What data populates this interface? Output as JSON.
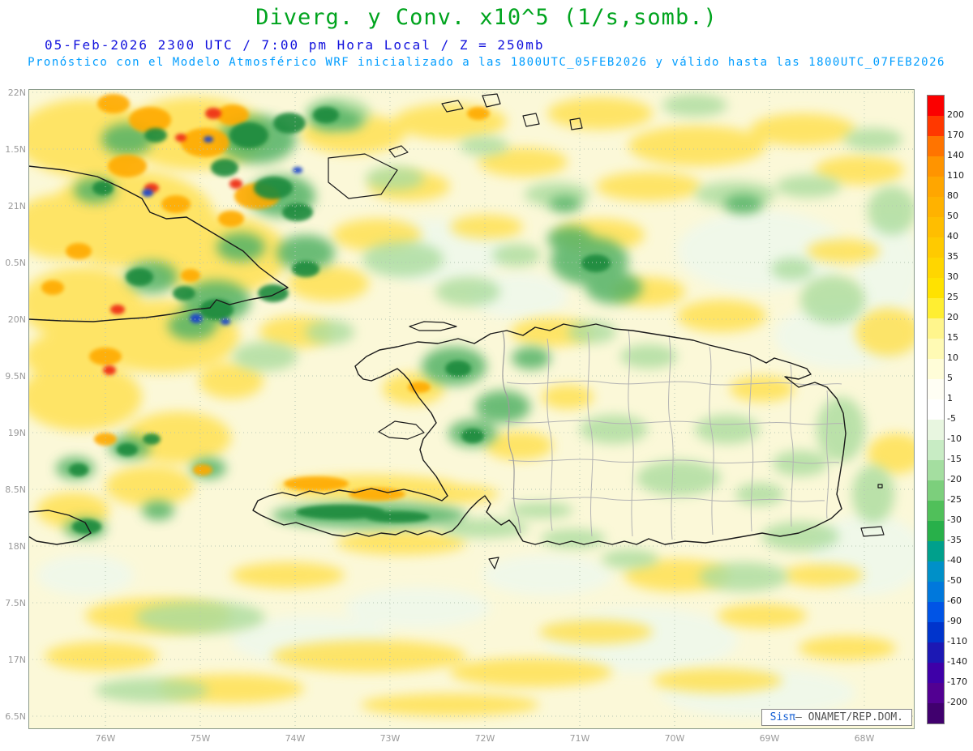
{
  "header": {
    "title": "Diverg. y Conv. x10^5 (1/s,somb.)",
    "date_line": "05-Feb-2026  2300 UTC / 7:00 pm Hora Local / Z = 250mb",
    "model_line": "Pronóstico con el Modelo Atmosférico WRF inicializado a las 1800UTC_05FEB2026 y válido hasta las  1800UTC_07FEB2026"
  },
  "axes": {
    "lat_labels": [
      "22N",
      "1.5N",
      "21N",
      "0.5N",
      "20N",
      "9.5N",
      "19N",
      "8.5N",
      "18N",
      "7.5N",
      "17N",
      "6.5N"
    ],
    "lon_labels": [
      "76W",
      "75W",
      "74W",
      "73W",
      "72W",
      "71W",
      "70W",
      "69W",
      "68W"
    ]
  },
  "chart_data": {
    "type": "heatmap",
    "title": "Diverg. y Conv. x10^5 (1/s,somb.)",
    "variable": "Divergencia y Convergencia",
    "units": "x10^5 (1/s), sombreado",
    "pressure_level": "250mb",
    "valid_time": "05-Feb-2026 2300 UTC / 7:00 pm Hora Local",
    "model_init": "1800UTC_05FEB2026",
    "model_valid_until": "1800UTC_07FEB2026",
    "x_tick_labels": [
      "76W",
      "75W",
      "74W",
      "73W",
      "72W",
      "71W",
      "70W",
      "69W",
      "68W"
    ],
    "y_tick_labels": [
      "22N",
      "1.5N",
      "21N",
      "0.5N",
      "20N",
      "9.5N",
      "19N",
      "8.5N",
      "18N",
      "7.5N",
      "17N",
      "6.5N"
    ],
    "colorbar": {
      "labels": [
        "200",
        "170",
        "140",
        "110",
        "80",
        "50",
        "40",
        "35",
        "30",
        "25",
        "20",
        "15",
        "10",
        "5",
        "1",
        "-5",
        "-10",
        "-15",
        "-20",
        "-25",
        "-30",
        "-35",
        "-40",
        "-50",
        "-60",
        "-90",
        "-110",
        "-140",
        "-170",
        "-200"
      ],
      "colors": [
        "#fb0000",
        "#ff3800",
        "#ff7400",
        "#ff9400",
        "#ffa600",
        "#ffb200",
        "#ffbe00",
        "#ffca00",
        "#ffd600",
        "#ffe200",
        "#ffee32",
        "#fff58c",
        "#fffab4",
        "#fffdd8",
        "#fffef4",
        "#ffffff",
        "#e8f6e0",
        "#c8ecc4",
        "#a4dea0",
        "#7ccf7c",
        "#50c05a",
        "#28b04a",
        "#00a08c",
        "#0090c8",
        "#0078dc",
        "#0054e6",
        "#0034cc",
        "#1c18b4",
        "#3e00a8",
        "#520092",
        "#40006e"
      ]
    }
  },
  "branding": {
    "prefix": "Sisπ",
    "suffix": "– ONAMET/REP.DOM."
  }
}
